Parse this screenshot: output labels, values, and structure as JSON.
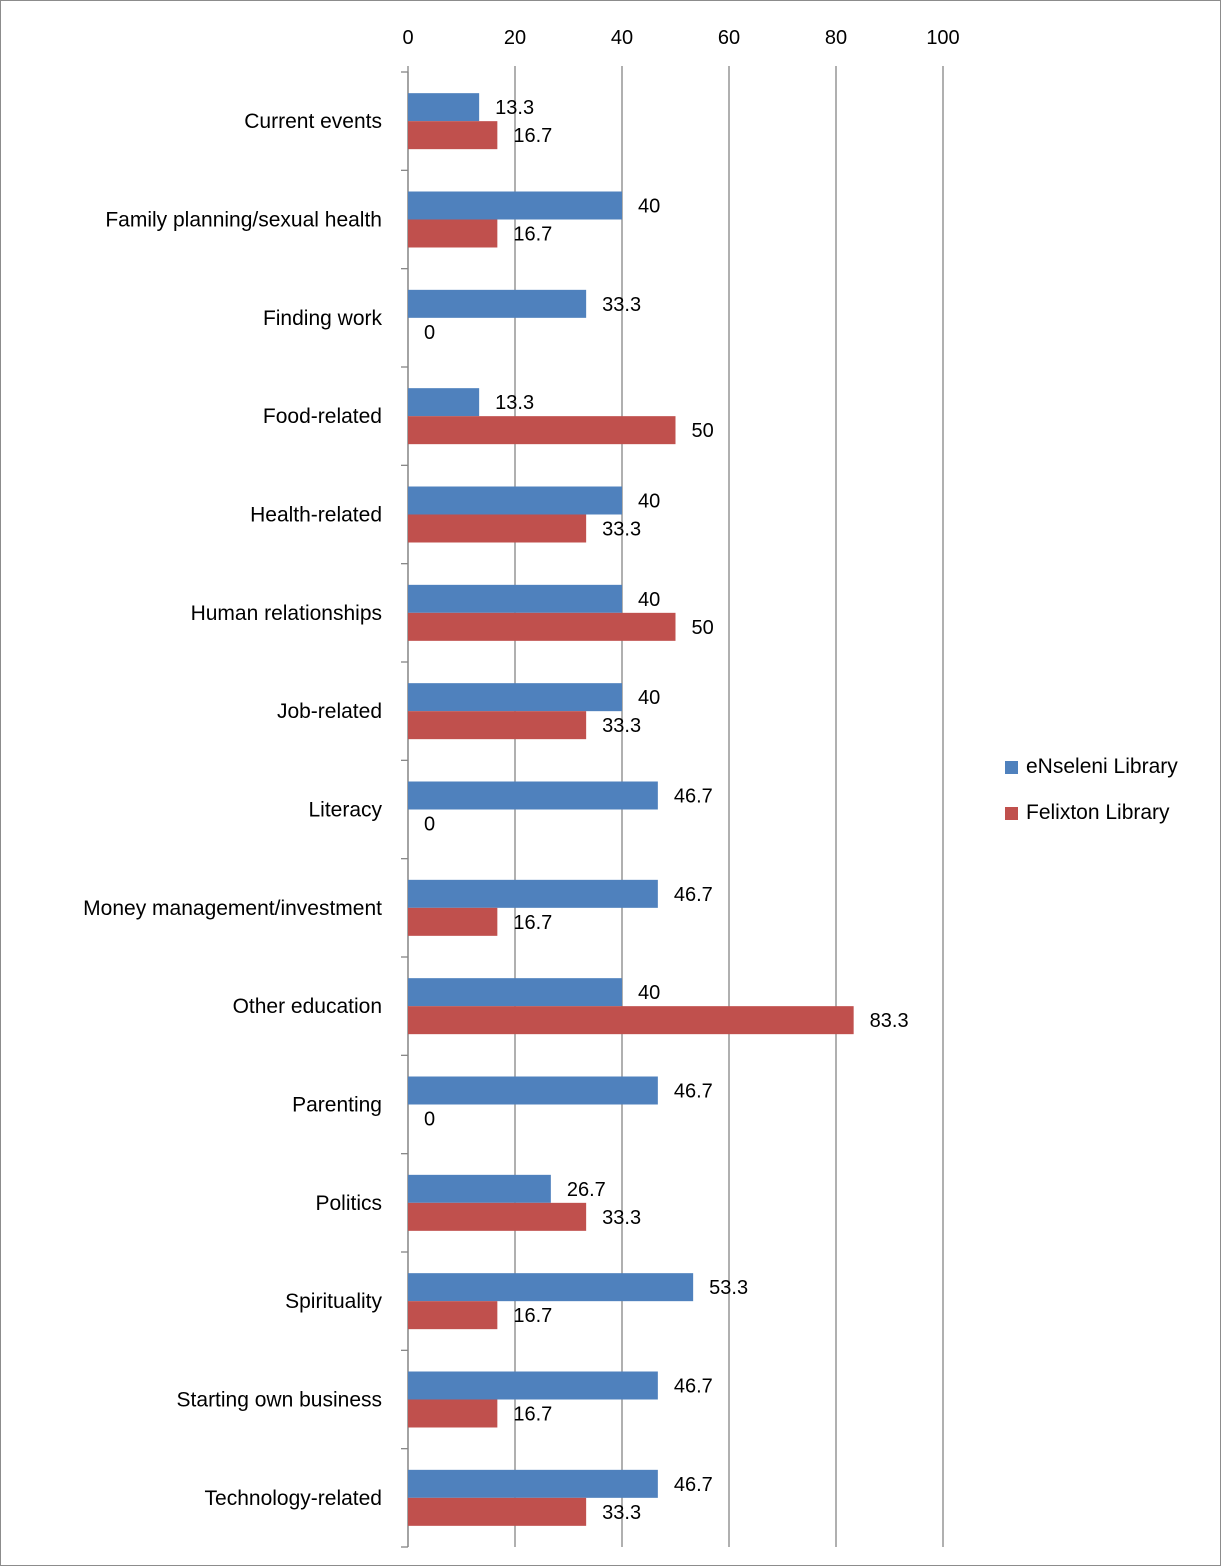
{
  "chart_data": {
    "type": "bar",
    "orientation": "horizontal",
    "categories": [
      "Current events",
      "Family planning/sexual health",
      "Finding work",
      "Food-related",
      "Health-related",
      "Human relationships",
      "Job-related",
      "Literacy",
      "Money management/investment",
      "Other education",
      "Parenting",
      "Politics",
      "Spirituality",
      "Starting own business",
      "Technology-related"
    ],
    "series": [
      {
        "name": "eNseleni Library",
        "color": "#4F81BD",
        "values": [
          13.3,
          40,
          33.3,
          13.3,
          40,
          40,
          40,
          46.7,
          46.7,
          40,
          46.7,
          26.7,
          53.3,
          46.7,
          46.7
        ],
        "labels": [
          "13.3",
          "40",
          "33.3",
          "13.3",
          "40",
          "40",
          "40",
          "46.7",
          "46.7",
          "40",
          "46.7",
          "26.7",
          "53.3",
          "46.7",
          "46.7"
        ]
      },
      {
        "name": "Felixton Library",
        "color": "#C0504D",
        "values": [
          16.7,
          16.7,
          0,
          50,
          33.3,
          50,
          33.3,
          0,
          16.7,
          83.3,
          0,
          33.3,
          16.7,
          16.7,
          33.3
        ],
        "labels": [
          "16.7",
          "16.7",
          "0",
          "50",
          "33.3",
          "50",
          "33.3",
          "0",
          "16.7",
          "83.3",
          "0",
          "33.3",
          "16.7",
          "16.7",
          "33.3"
        ]
      }
    ],
    "xlim": [
      0,
      100
    ],
    "xticks": [
      0,
      20,
      40,
      60,
      80,
      100
    ],
    "xtick_labels": [
      "0",
      "20",
      "40",
      "60",
      "80",
      "100"
    ],
    "x_axis_position": "top",
    "grid": true,
    "legend_position": "right",
    "title": "",
    "xlabel": "",
    "ylabel": ""
  }
}
